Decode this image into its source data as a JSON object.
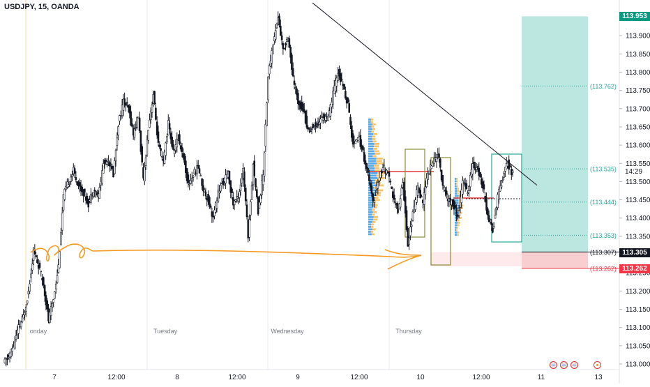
{
  "header": {
    "title": "USDJPY, 15, OANDA"
  },
  "chart_data": {
    "type": "candlestick",
    "symbol": "USDJPY",
    "interval": "15",
    "source": "OANDA",
    "ylim": [
      112.98,
      114.0
    ],
    "price_ticks": [
      113.0,
      113.05,
      113.1,
      113.15,
      113.2,
      113.25,
      113.3,
      113.35,
      113.4,
      113.45,
      113.5,
      113.55,
      113.6,
      113.65,
      113.7,
      113.75,
      113.8,
      113.85,
      113.9,
      113.95
    ],
    "time_labels": [
      "7",
      "12:00",
      "8",
      "12:00",
      "9",
      "12:00",
      "10",
      "12:00",
      "11",
      "13"
    ],
    "day_labels": [
      "onday",
      "Tuesday",
      "Wednesday",
      "Thursday"
    ],
    "current_price": "113.305",
    "countdown": "14:29",
    "position": {
      "target": "113.953",
      "entry": "113.307",
      "stop": "113.262",
      "entry_display": "(113.307)",
      "stop_display": "(113.262)",
      "target_display": "113.953"
    },
    "level_labels": [
      {
        "price": 113.762,
        "text": "(113.762)"
      },
      {
        "price": 113.535,
        "text": "(113.535)"
      },
      {
        "price": 113.444,
        "text": "(113.444)"
      },
      {
        "price": 113.353,
        "text": "(113.353)"
      }
    ],
    "trendline": [
      [
        113.99,
        448
      ],
      [
        113.49,
        770
      ]
    ],
    "ohlc_close_path": [
      113.0,
      113.02,
      113.05,
      113.1,
      113.13,
      113.2,
      113.31,
      113.27,
      113.22,
      113.12,
      113.18,
      113.27,
      113.46,
      113.5,
      113.53,
      113.49,
      113.47,
      113.44,
      113.48,
      113.46,
      113.55,
      113.56,
      113.52,
      113.66,
      113.72,
      113.7,
      113.63,
      113.68,
      113.5,
      113.65,
      113.74,
      113.6,
      113.55,
      113.66,
      113.58,
      113.62,
      113.57,
      113.49,
      113.52,
      113.54,
      113.48,
      113.45,
      113.4,
      113.47,
      113.5,
      113.52,
      113.44,
      113.46,
      113.53,
      113.35,
      113.55,
      113.42,
      113.52,
      113.79,
      113.88,
      113.95,
      113.86,
      113.9,
      113.78,
      113.72,
      113.7,
      113.64,
      113.65,
      113.66,
      113.68,
      113.67,
      113.74,
      113.8,
      113.76,
      113.71,
      113.6,
      113.63,
      113.58,
      113.52,
      113.44,
      113.5,
      113.54,
      113.52,
      113.46,
      113.42,
      113.5,
      113.33,
      113.41,
      113.49,
      113.44,
      113.53,
      113.55,
      113.58,
      113.49,
      113.45,
      113.44,
      113.4,
      113.5,
      113.47,
      113.55,
      113.53,
      113.49,
      113.41,
      113.37,
      113.46,
      113.51,
      113.55,
      113.52
    ]
  }
}
